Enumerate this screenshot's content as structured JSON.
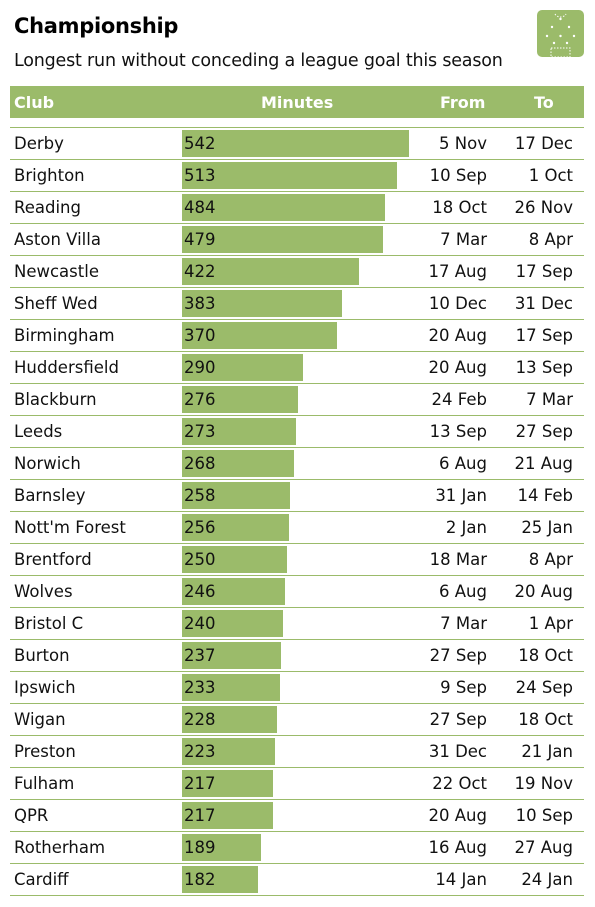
{
  "title": "Championship",
  "subtitle": "Longest run without conceding a league goal this season",
  "icon": "football-pitch-icon",
  "colors": {
    "accent": "#9bbb6a",
    "header_text": "#ffffff",
    "text": "#111111"
  },
  "header": {
    "club": "Club",
    "minutes": "Minutes",
    "from": "From",
    "to": "To"
  },
  "chart_data": {
    "type": "bar",
    "orientation": "horizontal",
    "columns": [
      "Club",
      "Minutes",
      "From",
      "To"
    ],
    "xlim": [
      0,
      542
    ],
    "rows": [
      {
        "club": "Derby",
        "minutes": 542,
        "from": "5 Nov",
        "to": "17 Dec"
      },
      {
        "club": "Brighton",
        "minutes": 513,
        "from": "10 Sep",
        "to": "1 Oct"
      },
      {
        "club": "Reading",
        "minutes": 484,
        "from": "18 Oct",
        "to": "26 Nov"
      },
      {
        "club": "Aston Villa",
        "minutes": 479,
        "from": "7 Mar",
        "to": "8 Apr"
      },
      {
        "club": "Newcastle",
        "minutes": 422,
        "from": "17 Aug",
        "to": "17 Sep"
      },
      {
        "club": "Sheff Wed",
        "minutes": 383,
        "from": "10 Dec",
        "to": "31 Dec"
      },
      {
        "club": "Birmingham",
        "minutes": 370,
        "from": "20 Aug",
        "to": "17 Sep"
      },
      {
        "club": "Huddersfield",
        "minutes": 290,
        "from": "20 Aug",
        "to": "13 Sep"
      },
      {
        "club": "Blackburn",
        "minutes": 276,
        "from": "24 Feb",
        "to": "7 Mar"
      },
      {
        "club": "Leeds",
        "minutes": 273,
        "from": "13 Sep",
        "to": "27 Sep"
      },
      {
        "club": "Norwich",
        "minutes": 268,
        "from": "6 Aug",
        "to": "21 Aug"
      },
      {
        "club": "Barnsley",
        "minutes": 258,
        "from": "31 Jan",
        "to": "14 Feb"
      },
      {
        "club": "Nott'm Forest",
        "minutes": 256,
        "from": "2 Jan",
        "to": "25 Jan"
      },
      {
        "club": "Brentford",
        "minutes": 250,
        "from": "18 Mar",
        "to": "8 Apr"
      },
      {
        "club": "Wolves",
        "minutes": 246,
        "from": "6 Aug",
        "to": "20 Aug"
      },
      {
        "club": "Bristol C",
        "minutes": 240,
        "from": "7 Mar",
        "to": "1 Apr"
      },
      {
        "club": "Burton",
        "minutes": 237,
        "from": "27 Sep",
        "to": "18 Oct"
      },
      {
        "club": "Ipswich",
        "minutes": 233,
        "from": "9 Sep",
        "to": "24 Sep"
      },
      {
        "club": "Wigan",
        "minutes": 228,
        "from": "27 Sep",
        "to": "18 Oct"
      },
      {
        "club": "Preston",
        "minutes": 223,
        "from": "31 Dec",
        "to": "21 Jan"
      },
      {
        "club": "Fulham",
        "minutes": 217,
        "from": "22 Oct",
        "to": "19 Nov"
      },
      {
        "club": "QPR",
        "minutes": 217,
        "from": "20 Aug",
        "to": "10 Sep"
      },
      {
        "club": "Rotherham",
        "minutes": 189,
        "from": "16 Aug",
        "to": "27 Aug"
      },
      {
        "club": "Cardiff",
        "minutes": 182,
        "from": "14 Jan",
        "to": "24 Jan"
      }
    ]
  }
}
